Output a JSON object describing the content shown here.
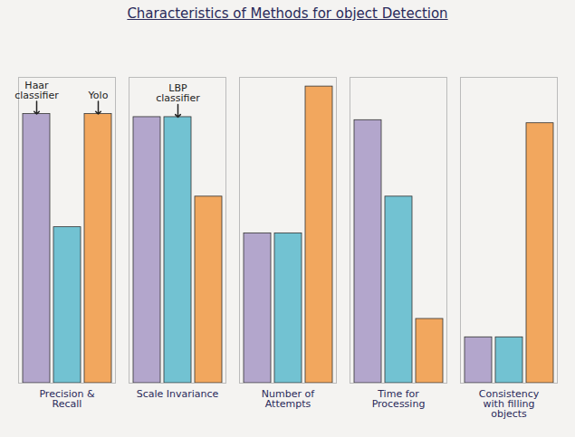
{
  "chart_data": {
    "type": "bar",
    "title": "Characteristics of Methods for object Detection",
    "categories": [
      "Precision & Recall",
      "Scale Invariance",
      "Number of Attempts",
      "Time for Processing",
      "Consistency with filling objects"
    ],
    "series": [
      {
        "name": "Haar classifier",
        "color": "#b3a6cc",
        "values": [
          8.8,
          8.7,
          4.9,
          8.6,
          1.5
        ]
      },
      {
        "name": "LBP classifier",
        "color": "#72c2d2",
        "values": [
          5.1,
          8.7,
          4.9,
          6.1,
          1.5
        ]
      },
      {
        "name": "Yolo",
        "color": "#f2a75e",
        "values": [
          8.8,
          6.1,
          9.7,
          2.1,
          8.5
        ]
      }
    ],
    "ylim": [
      0,
      10
    ],
    "yticks": [],
    "tick_labels": "x",
    "grid": false
  }
}
